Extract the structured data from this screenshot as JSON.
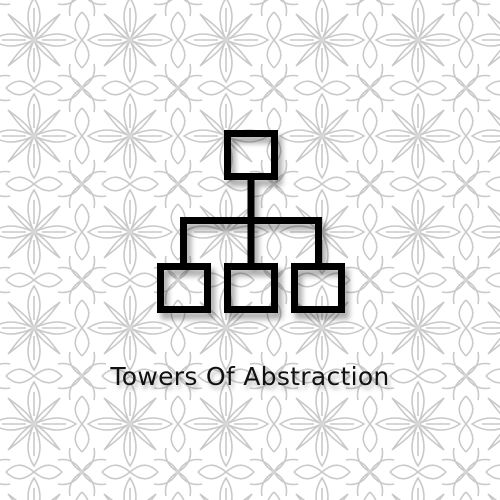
{
  "title": "Towers Of Abstraction",
  "colors": {
    "background": "#ffffff",
    "pattern": "#c8c8c8",
    "icon": "#000000",
    "text": "#111111"
  },
  "icons": {
    "logo": "hierarchy-tree-icon",
    "background": "floral-lattice-pattern"
  }
}
